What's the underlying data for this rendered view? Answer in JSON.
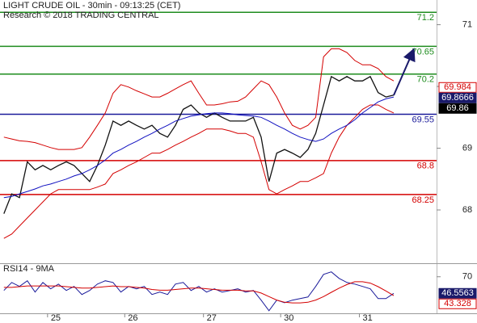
{
  "chart_data": [
    {
      "type": "line",
      "title": "LIGHT CRUDE OIL - 30min - 09:13:25 (CET)",
      "subtitle": "Research © 2018 TRADING CENTRAL",
      "xlim": [
        -0.5,
        55.5
      ],
      "ylim": [
        67.15,
        71.4
      ],
      "yticks": [
        68,
        69,
        70,
        71
      ],
      "levels": [
        71.2,
        70.65,
        70.2,
        69.55,
        68.8,
        68.25
      ],
      "level_colors": [
        "#1e8c1e",
        "#1e8c1e",
        "#1e8c1e",
        "#1a1a9a",
        "#d40000",
        "#d40000"
      ],
      "series": [
        {
          "color": "#111111",
          "values": [
            67.94,
            68.26,
            68.2,
            68.78,
            68.65,
            68.72,
            68.65,
            68.72,
            68.78,
            68.72,
            68.59,
            68.46,
            68.72,
            69.05,
            69.44,
            69.37,
            69.44,
            69.37,
            69.31,
            69.37,
            69.24,
            69.18,
            69.37,
            69.63,
            69.7,
            69.57,
            69.5,
            69.57,
            69.5,
            69.44,
            69.44,
            69.44,
            69.5,
            69.18,
            68.46,
            68.92,
            68.98,
            68.92,
            68.85,
            68.98,
            69.24,
            69.7,
            70.16,
            70.09,
            70.16,
            70.09,
            70.09,
            70.16,
            69.9,
            69.83,
            69.86
          ]
        },
        {
          "color": "#d40000",
          "values": [
            69.18,
            69.15,
            69.12,
            69.11,
            69.09,
            69.05,
            69.01,
            68.98,
            68.98,
            68.98,
            69.01,
            69.18,
            69.37,
            69.57,
            69.89,
            70.03,
            69.99,
            69.93,
            69.88,
            69.83,
            69.83,
            69.89,
            69.96,
            70.03,
            70.09,
            69.89,
            69.7,
            69.7,
            69.72,
            69.75,
            69.76,
            69.83,
            69.96,
            70.09,
            70.03,
            69.83,
            69.57,
            69.37,
            69.31,
            69.37,
            69.5,
            70.48,
            70.61,
            70.61,
            70.55,
            70.42,
            70.35,
            70.35,
            70.29,
            70.16,
            70.09
          ]
        },
        {
          "color": "#d40000",
          "values": [
            67.54,
            67.61,
            67.74,
            67.87,
            68.0,
            68.13,
            68.26,
            68.33,
            68.33,
            68.33,
            68.33,
            68.33,
            68.37,
            68.42,
            68.59,
            68.65,
            68.72,
            68.78,
            68.85,
            68.92,
            68.92,
            68.98,
            69.05,
            69.11,
            69.18,
            69.24,
            69.31,
            69.31,
            69.31,
            69.28,
            69.24,
            69.24,
            69.18,
            68.78,
            68.33,
            68.26,
            68.33,
            68.39,
            68.46,
            68.46,
            68.52,
            68.59,
            68.92,
            69.18,
            69.37,
            69.5,
            69.63,
            69.7,
            69.7,
            69.63,
            69.57
          ]
        },
        {
          "color": "#1010c0",
          "values": [
            68.2,
            68.22,
            68.26,
            68.3,
            68.34,
            68.39,
            68.42,
            68.46,
            68.5,
            68.55,
            68.59,
            68.65,
            68.72,
            68.81,
            68.92,
            68.98,
            69.05,
            69.11,
            69.18,
            69.24,
            69.31,
            69.37,
            69.44,
            69.48,
            69.52,
            69.54,
            69.56,
            69.57,
            69.57,
            69.56,
            69.54,
            69.53,
            69.52,
            69.5,
            69.44,
            69.37,
            69.31,
            69.24,
            69.18,
            69.14,
            69.11,
            69.15,
            69.24,
            69.31,
            69.37,
            69.46,
            69.57,
            69.66,
            69.75,
            69.8,
            69.83
          ]
        }
      ],
      "markers": [
        69.984,
        69.8666,
        69.86
      ],
      "marker_colors": [
        "#d40000",
        "#1a1a6a",
        "#000000"
      ]
    },
    {
      "type": "line",
      "title": "RSI14 - 9MA",
      "xlim": [
        -0.5,
        55.5
      ],
      "xticks": [
        {
          "value": 5.6,
          "label": "25"
        },
        {
          "value": 15.5,
          "label": "26"
        },
        {
          "value": 25.6,
          "label": "27"
        },
        {
          "value": 35.5,
          "label": "30"
        },
        {
          "value": 45.6,
          "label": "31"
        }
      ],
      "ylim": [
        16,
        88
      ],
      "yticks": [
        70
      ],
      "series": [
        {
          "color": "#1a1a9a",
          "values": [
            50.6,
            62,
            56.3,
            64.3,
            48.3,
            62,
            52.9,
            59.7,
            50.6,
            56.3,
            44.9,
            50.6,
            59.7,
            64.3,
            62,
            48.3,
            56.3,
            52.9,
            56.3,
            44.9,
            48.3,
            44.9,
            59.7,
            62,
            50.6,
            56.3,
            48.3,
            52.9,
            48.3,
            50.6,
            52.9,
            48.3,
            50.6,
            36.9,
            22,
            36.9,
            33.4,
            36.9,
            39.1,
            41.4,
            56.3,
            73.4,
            76.9,
            67.7,
            62,
            59.7,
            56.3,
            52.9,
            39.1,
            39.1,
            46.56
          ]
        },
        {
          "color": "#d40000",
          "values": [
            55,
            55,
            56,
            57,
            57,
            57,
            57,
            57,
            56,
            55,
            54,
            54,
            55,
            56,
            57,
            56,
            56,
            55,
            54,
            52,
            51,
            51,
            52,
            53,
            54,
            54,
            53,
            52,
            51,
            51,
            51,
            50,
            50,
            47,
            42,
            37,
            34,
            33,
            33,
            34,
            37,
            42,
            48,
            54,
            59,
            63,
            63,
            61,
            56,
            50,
            43.33
          ]
        }
      ],
      "markers": [
        46.5563,
        43.328
      ],
      "marker_colors": [
        "#1a1a6a",
        "#d40000"
      ]
    }
  ]
}
